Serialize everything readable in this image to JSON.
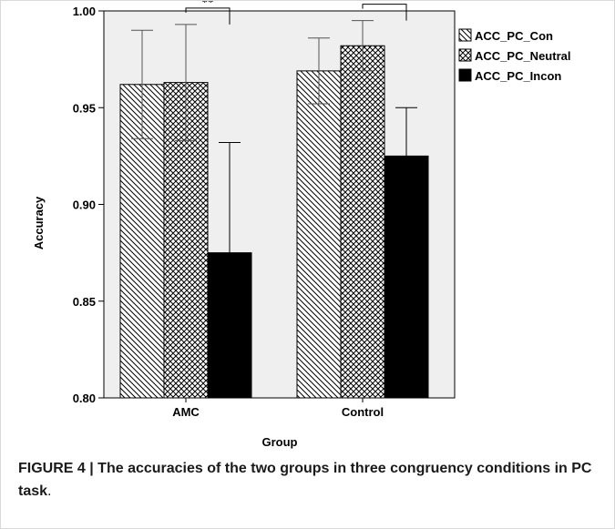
{
  "chart_data": {
    "type": "bar",
    "xlabel": "Group",
    "ylabel": "Accuracy",
    "categories": [
      "AMC",
      "Control"
    ],
    "ylim": [
      0.8,
      1.0
    ],
    "yticks": [
      "0.80",
      "0.85",
      "0.90",
      "0.95",
      "1.00"
    ],
    "grid": false,
    "legend_position": "top-right",
    "series": [
      {
        "name": "ACC_PC_Con",
        "pattern": "diagonal-hatch",
        "values": [
          0.962,
          0.969
        ],
        "error": [
          0.028,
          0.017
        ]
      },
      {
        "name": "ACC_PC_Neutral",
        "pattern": "crosshatch",
        "values": [
          0.963,
          0.982
        ],
        "error": [
          0.03,
          0.013
        ]
      },
      {
        "name": "ACC_PC_Incon",
        "pattern": "solid-black",
        "values": [
          0.875,
          0.925
        ],
        "error": [
          0.057,
          0.025
        ]
      }
    ],
    "annotations": [
      {
        "text": "**",
        "category": "AMC",
        "from_series": 1,
        "to_series": 2
      },
      {
        "text": "**",
        "category": "Control",
        "from_series": 1,
        "to_series": 2
      }
    ],
    "colors": {
      "plot_background": "#efefef",
      "bar_fill": "#ffffff",
      "bar_dark": "#000000",
      "frame": "#000000"
    }
  },
  "caption": {
    "label": "FIGURE 4 |",
    "text": "The accuracies of the two groups in three congruency conditions in PC task",
    "end": "."
  }
}
